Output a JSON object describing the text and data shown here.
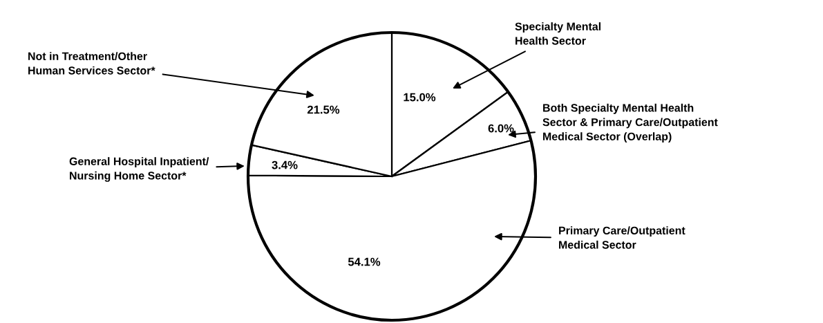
{
  "chart_data": {
    "type": "pie",
    "categories": [
      "Specialty Mental\nHealth Sector",
      "Both Specialty Mental Health\nSector & Primary Care/Outpatient\nMedical Sector (Overlap)",
      "Primary Care/Outpatient\nMedical Sector",
      "General Hospital Inpatient/\nNursing Home Sector*",
      "Not in Treatment/Other\nHuman Services Sector*"
    ],
    "values": [
      15.0,
      6.0,
      54.1,
      3.4,
      21.5
    ],
    "colors": [
      "#ffffff",
      "#ffffff",
      "#ffffff",
      "#ffffff",
      "#ffffff"
    ],
    "value_labels": [
      "15.0%",
      "6.0%",
      "54.1%",
      "3.4%",
      "21.5%"
    ]
  }
}
